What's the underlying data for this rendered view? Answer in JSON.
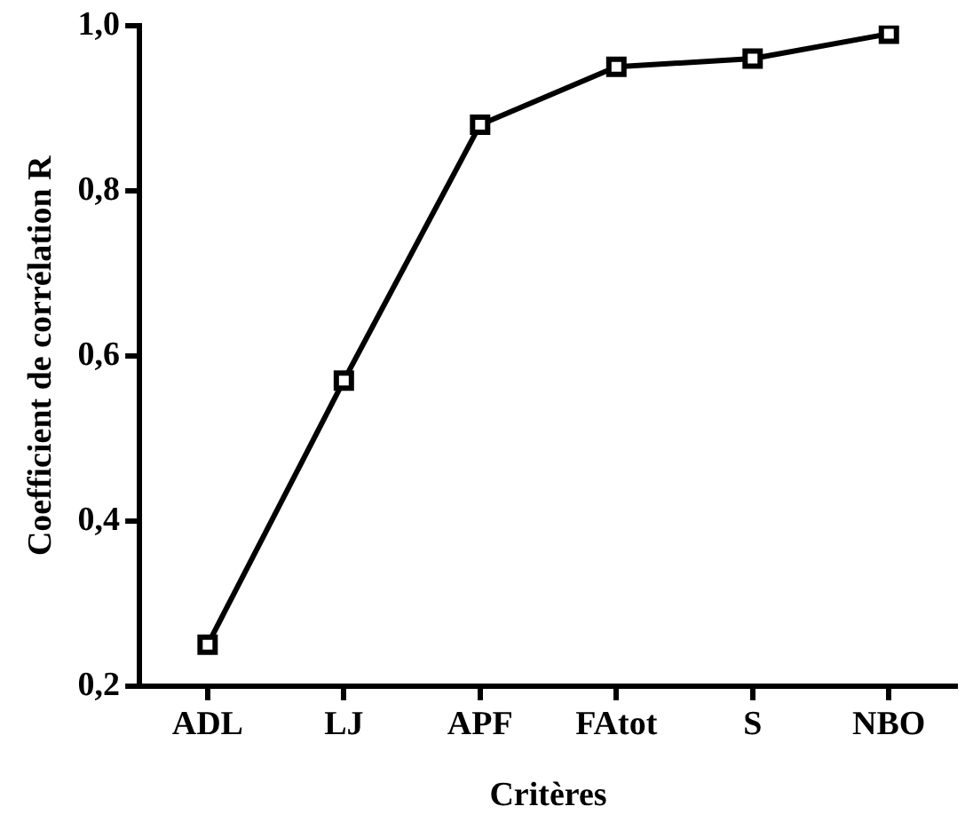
{
  "chart_data": {
    "type": "line",
    "xlabel": "Critères",
    "ylabel": "Coefficient de corrélation R",
    "categories": [
      "ADL",
      "LJ",
      "APF",
      "FAtot",
      "S",
      "NBO"
    ],
    "series": [
      {
        "color": "#000000",
        "values": [
          0.25,
          0.57,
          0.88,
          0.95,
          0.96,
          0.99
        ]
      }
    ],
    "ylim": [
      0.2,
      1.0
    ],
    "yticks": [
      {
        "value": 0.2,
        "label": "0,2"
      },
      {
        "value": 0.4,
        "label": "0,4"
      },
      {
        "value": 0.6,
        "label": "0,6"
      },
      {
        "value": 0.8,
        "label": "0,8"
      },
      {
        "value": 1.0,
        "label": "1,0"
      }
    ],
    "grid": false,
    "legend": false,
    "marker": "square",
    "line_style": "solid"
  }
}
